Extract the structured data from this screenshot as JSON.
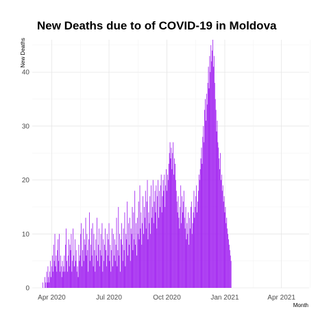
{
  "chart_data": {
    "type": "bar",
    "title": "New Deaths due to of COVID-19 in Moldova",
    "xlabel": "Month",
    "ylabel": "New Deaths",
    "x_start": "2020-03-18",
    "x_end": "2021-05-02",
    "xlim": [
      "2020-03-01",
      "2021-05-15"
    ],
    "ylim": [
      0,
      46
    ],
    "yticks": [
      0,
      10,
      20,
      30,
      40
    ],
    "xticks": [
      {
        "date": "2020-04-01",
        "label": "Apr 2020"
      },
      {
        "date": "2020-07-01",
        "label": "Jul 2020"
      },
      {
        "date": "2020-10-01",
        "label": "Oct 2020"
      },
      {
        "date": "2021-01-01",
        "label": "Jan 2021"
      },
      {
        "date": "2021-04-01",
        "label": "Apr 2021"
      }
    ],
    "grid": true,
    "bar_color": "#a020f0",
    "values": [
      1,
      0,
      0,
      2,
      1,
      0,
      3,
      1,
      4,
      2,
      1,
      3,
      5,
      2,
      4,
      6,
      3,
      8,
      5,
      10,
      4,
      6,
      3,
      7,
      9,
      5,
      10,
      3,
      6,
      4,
      2,
      5,
      3,
      4,
      6,
      3,
      8,
      11,
      5,
      3,
      6,
      9,
      4,
      8,
      7,
      10,
      3,
      5,
      11,
      6,
      4,
      9,
      5,
      7,
      3,
      4,
      2,
      8,
      5,
      6,
      10,
      12,
      4,
      7,
      11,
      5,
      9,
      8,
      13,
      6,
      10,
      7,
      3,
      9,
      14,
      5,
      8,
      11,
      6,
      12,
      4,
      10,
      7,
      3,
      9,
      6,
      13,
      5,
      8,
      11,
      4,
      7,
      10,
      6,
      12,
      3,
      9,
      5,
      8,
      11,
      7,
      4,
      10,
      6,
      9,
      12,
      5,
      8,
      3,
      7,
      11,
      4,
      10,
      6,
      9,
      5,
      8,
      13,
      4,
      7,
      15,
      6,
      10,
      3,
      9,
      12,
      8,
      5,
      11,
      7,
      14,
      4,
      10,
      9,
      16,
      6,
      12,
      8,
      13,
      5,
      11,
      10,
      15,
      7,
      14,
      9,
      18,
      8,
      12,
      6,
      13,
      10,
      16,
      9,
      19,
      11,
      14,
      8,
      12,
      17,
      10,
      15,
      13,
      18,
      11,
      16,
      20,
      9,
      14,
      12,
      17,
      10,
      19,
      13,
      15,
      20,
      12,
      16,
      18,
      14,
      19,
      11,
      17,
      20,
      13,
      18,
      15,
      19,
      21,
      14,
      17,
      20,
      18,
      21,
      15,
      19,
      22,
      18,
      21,
      20,
      23,
      25,
      27,
      24,
      26,
      22,
      25,
      27,
      21,
      24,
      23,
      20,
      18,
      16,
      14,
      17,
      13,
      11,
      15,
      19,
      12,
      17,
      14,
      16,
      18,
      13,
      11,
      15,
      9,
      12,
      10,
      14,
      8,
      13,
      11,
      15,
      16,
      10,
      12,
      14,
      18,
      13,
      15,
      17,
      19,
      14,
      16,
      18,
      21,
      20,
      22,
      24,
      26,
      23,
      28,
      30,
      27,
      33,
      35,
      31,
      36,
      34,
      38,
      41,
      37,
      43,
      40,
      45,
      42,
      44,
      46,
      41,
      43,
      38,
      35,
      33,
      29,
      31,
      27,
      26,
      24,
      22,
      25,
      20,
      21,
      18,
      19,
      16,
      17,
      14,
      15,
      12,
      13,
      11,
      10,
      9,
      8,
      7,
      6,
      5
    ]
  }
}
